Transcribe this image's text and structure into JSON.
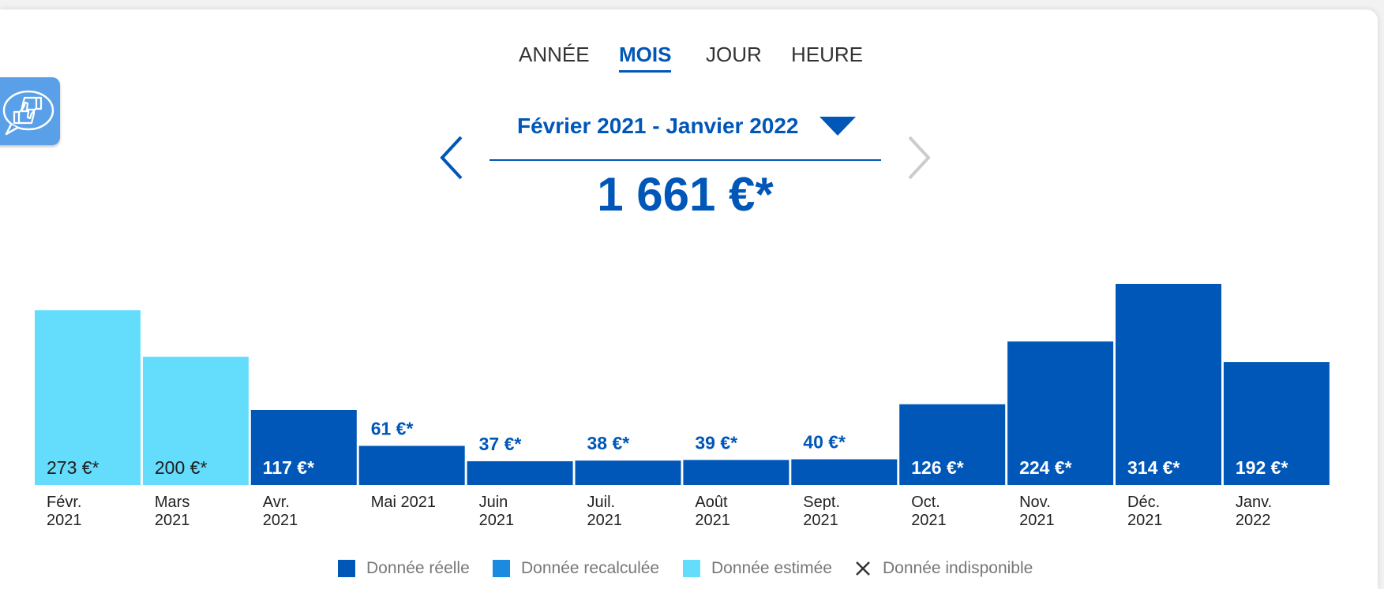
{
  "tabs": [
    {
      "label": "ANNÉE",
      "active": false
    },
    {
      "label": "MOIS",
      "active": true
    },
    {
      "label": "JOUR",
      "active": false
    },
    {
      "label": "HEURE",
      "active": false
    }
  ],
  "period": {
    "label": "Février 2021 - Janvier 2022"
  },
  "total": "1 661 €*",
  "colors": {
    "reelle": "#0057b8",
    "recalculee": "#1a8be0",
    "estimee": "#64dcfc"
  },
  "legend": [
    {
      "label": "Donnée réelle",
      "color": "#0057b8",
      "icon": "square"
    },
    {
      "label": "Donnée recalculée",
      "color": "#1a8be0",
      "icon": "square"
    },
    {
      "label": "Donnée estimée",
      "color": "#64dcfc",
      "icon": "square"
    },
    {
      "label": "Donnée indisponible",
      "color": "#333333",
      "icon": "cross-icon"
    }
  ],
  "chart_data": {
    "type": "bar",
    "categories": [
      "Févr. 2021",
      "Mars 2021",
      "Avr. 2021",
      "Mai 2021",
      "Juin 2021",
      "Juil. 2021",
      "Août 2021",
      "Sept. 2021",
      "Oct. 2021",
      "Nov. 2021",
      "Déc. 2021",
      "Janv. 2022"
    ],
    "tick_labels": [
      [
        "Févr.",
        "2021"
      ],
      [
        "Mars",
        "2021"
      ],
      [
        "Avr.",
        "2021"
      ],
      [
        "Mai 2021"
      ],
      [
        "Juin",
        "2021"
      ],
      [
        "Juil.",
        "2021"
      ],
      [
        "Août",
        "2021"
      ],
      [
        "Sept.",
        "2021"
      ],
      [
        "Oct.",
        "2021"
      ],
      [
        "Nov.",
        "2021"
      ],
      [
        "Déc.",
        "2021"
      ],
      [
        "Janv.",
        "2022"
      ]
    ],
    "values": [
      273,
      200,
      117,
      61,
      37,
      38,
      39,
      40,
      126,
      224,
      314,
      192
    ],
    "data_labels": [
      "273 €*",
      "200 €*",
      "117 €*",
      "61 €*",
      "37 €*",
      "38 €*",
      "39 €*",
      "40 €*",
      "126 €*",
      "224 €*",
      "314 €*",
      "192 €*"
    ],
    "data_type": [
      "estimee",
      "estimee",
      "reelle",
      "reelle",
      "reelle",
      "reelle",
      "reelle",
      "reelle",
      "reelle",
      "reelle",
      "reelle",
      "reelle"
    ],
    "ylim": [
      0,
      314
    ],
    "grid": false,
    "legend_position": "bottom"
  }
}
